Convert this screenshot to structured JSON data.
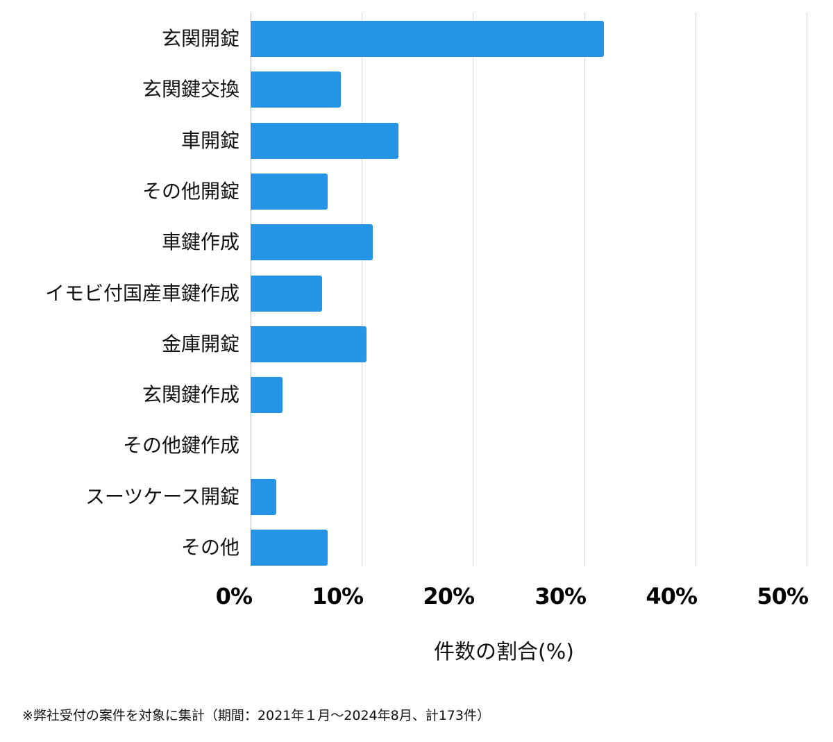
{
  "chart_data": {
    "type": "bar",
    "orientation": "horizontal",
    "title": "",
    "xlabel": "件数の割合(%)",
    "ylabel": "",
    "xlim": [
      0,
      50
    ],
    "grid": true,
    "legend": null,
    "bar_color": "#2594e4",
    "categories": [
      "玄関開錠",
      "玄関鍵交換",
      "車開錠",
      "その他開錠",
      "車鍵作成",
      "イモビ付国産車鍵作成",
      "金庫開錠",
      "玄関鍵作成",
      "その他鍵作成",
      "スーツケース開錠",
      "その他"
    ],
    "values": [
      31.8,
      8.1,
      13.3,
      6.9,
      11.0,
      6.4,
      10.4,
      2.9,
      0,
      2.3,
      6.9
    ],
    "x_ticks": [
      "0%",
      "10%",
      "20%",
      "30%",
      "40%",
      "50%"
    ],
    "annotation": "※弊社受付の案件を対象に集計（期間：2021年１月～2024年8月、計173件）"
  },
  "axis": {
    "ticks": [
      "0%",
      "10%",
      "20%",
      "30%",
      "40%",
      "50%"
    ],
    "xlabel": "件数の割合(%)"
  },
  "footnote": "※弊社受付の案件を対象に集計（期間：2021年１月～2024年8月、計173件）"
}
